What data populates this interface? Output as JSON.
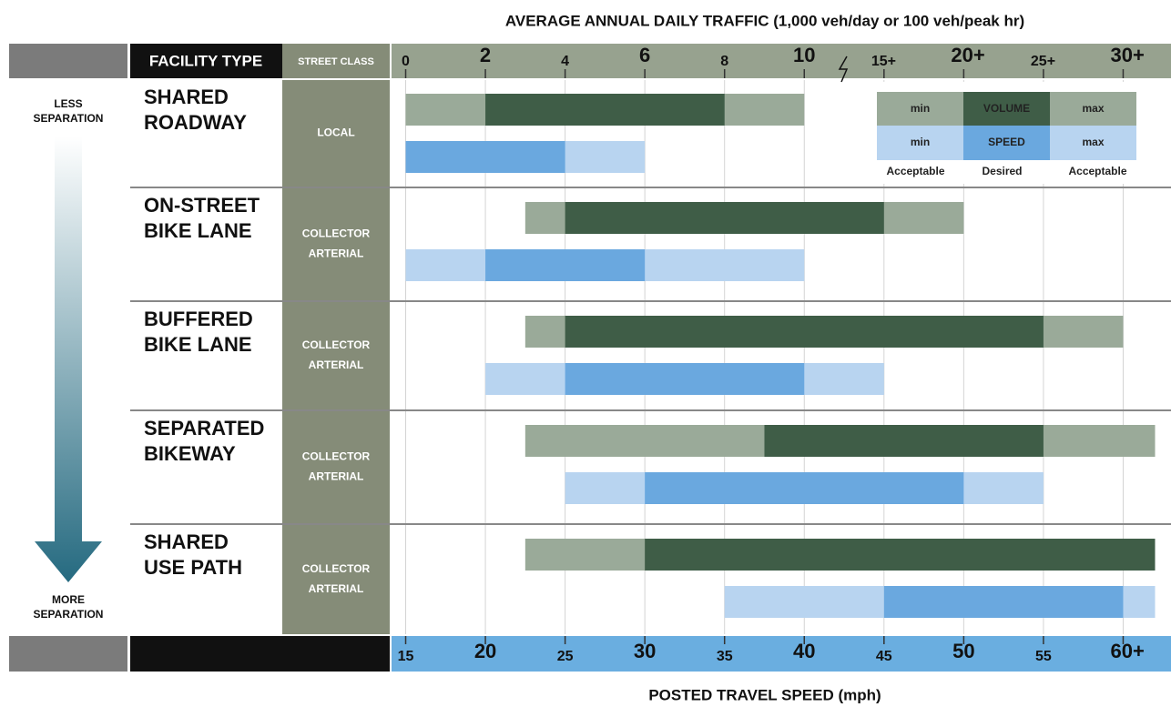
{
  "chart_data": {
    "type": "range",
    "xlabel": "AVERAGE ANNUAL DAILY TRAFFIC (1,000 veh/day or 100 veh/peak hr)",
    "xticks": [
      0,
      2,
      4,
      6,
      8,
      10,
      {
        "value": 15,
        "label": "15+"
      },
      {
        "value": 20,
        "label": "20+"
      },
      {
        "value": 25,
        "label": "25+"
      },
      {
        "value": 30,
        "label": "30+"
      }
    ],
    "x2label": "POSTED TRAVEL SPEED (mph)",
    "x2lim": [
      14,
      63
    ],
    "x2ticks": [
      15,
      20,
      25,
      30,
      35,
      40,
      45,
      50,
      55,
      {
        "value": 60,
        "label": "60+"
      }
    ],
    "headers": [
      "FACILITY TYPE",
      "STREET CLASS"
    ],
    "less_label": [
      "LESS",
      "SEPARATION"
    ],
    "more_label": [
      "MORE",
      "SEPARATION"
    ],
    "colors": {
      "volume_acceptable": "#9aaa99",
      "volume_desired": "#3f5d47",
      "speed_acceptable": "#b8d4f0",
      "speed_desired": "#6aa8df"
    },
    "legend": {
      "volume": [
        "min",
        "VOLUME",
        "max"
      ],
      "speed": [
        "min",
        "SPEED",
        "max"
      ],
      "levels": [
        "Acceptable",
        "Desired",
        "Acceptable"
      ]
    },
    "facilities": [
      {
        "name": [
          "SHARED",
          "ROADWAY"
        ],
        "street_class": [
          "LOCAL"
        ],
        "volume": {
          "acceptable": [
            0,
            10
          ],
          "desired": [
            2,
            8
          ]
        },
        "speed": {
          "acceptable": [
            15,
            30
          ],
          "desired": [
            15,
            25
          ]
        }
      },
      {
        "name": [
          "ON-STREET",
          "BIKE LANE"
        ],
        "street_class": [
          "COLLECTOR",
          "ARTERIAL"
        ],
        "volume": {
          "acceptable": [
            3,
            20
          ],
          "desired": [
            4,
            15
          ]
        },
        "speed": {
          "acceptable": [
            15,
            40
          ],
          "desired": [
            20,
            30
          ]
        }
      },
      {
        "name": [
          "BUFFERED",
          "BIKE LANE"
        ],
        "street_class": [
          "COLLECTOR",
          "ARTERIAL"
        ],
        "volume": {
          "acceptable": [
            3,
            30
          ],
          "desired": [
            4,
            25
          ]
        },
        "speed": {
          "acceptable": [
            20,
            45
          ],
          "desired": [
            25,
            40
          ]
        }
      },
      {
        "name": [
          "SEPARATED",
          "BIKEWAY"
        ],
        "street_class": [
          "COLLECTOR",
          "ARTERIAL"
        ],
        "volume": {
          "acceptable": [
            3,
            32
          ],
          "desired": [
            9,
            25
          ]
        },
        "speed": {
          "acceptable": [
            25,
            55
          ],
          "desired": [
            30,
            50
          ]
        }
      },
      {
        "name": [
          "SHARED",
          "USE PATH"
        ],
        "street_class": [
          "COLLECTOR",
          "ARTERIAL"
        ],
        "volume": {
          "acceptable": [
            3,
            32
          ],
          "desired": [
            6,
            32
          ]
        },
        "speed": {
          "acceptable": [
            35,
            62
          ],
          "desired": [
            45,
            60
          ]
        }
      }
    ]
  }
}
